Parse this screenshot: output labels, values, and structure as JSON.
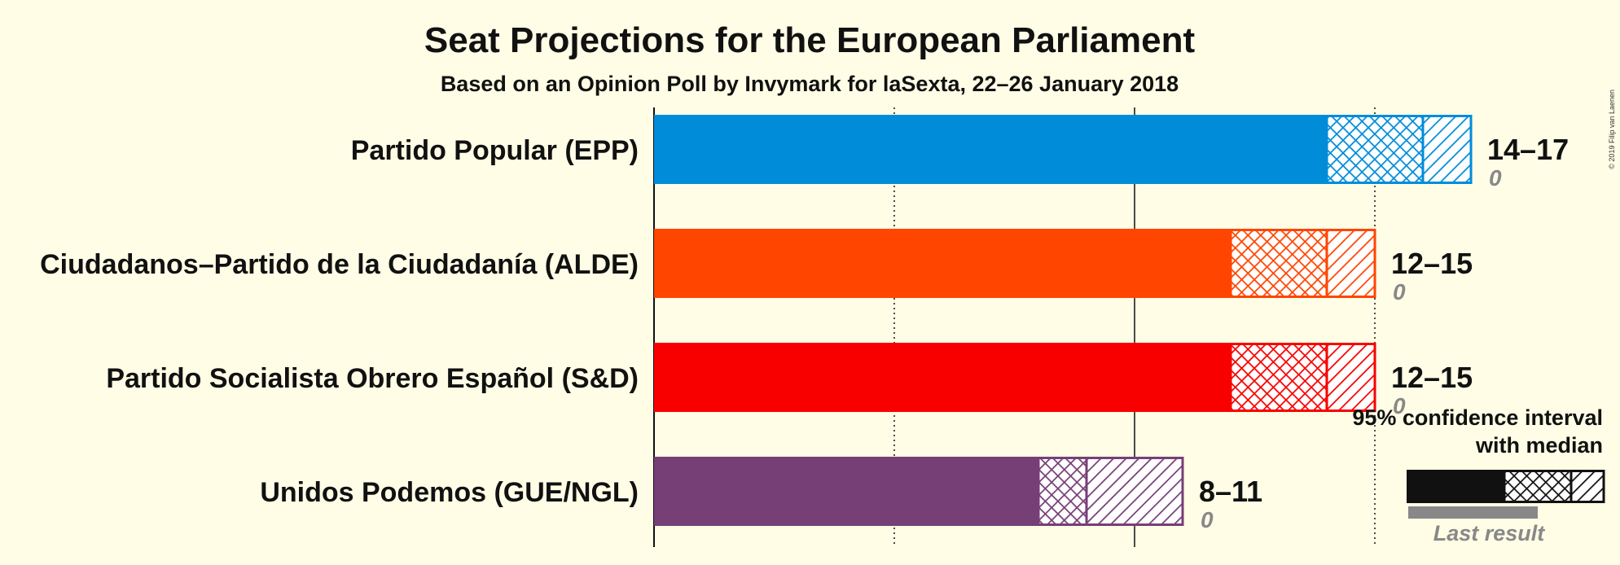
{
  "chart_data": {
    "type": "bar",
    "orientation": "horizontal",
    "title": "Seat Projections for the European Parliament",
    "subtitle": "Based on an Opinion Poll by Invymark for laSexta, 22–26 January 2018",
    "copyright": "© 2019 Filip van Laenen",
    "xlim": [
      0,
      17
    ],
    "gridlines": [
      5,
      10,
      15
    ],
    "categories": [
      "Partido Popular (EPP)",
      "Ciudadanos–Partido de la Ciudadanía (ALDE)",
      "Partido Socialista Obrero Español (S&D)",
      "Unidos Podemos (GUE/NGL)"
    ],
    "series": [
      {
        "category": "Partido Popular (EPP)",
        "low": 14,
        "median": 16,
        "high": 17,
        "range_label": "14–17",
        "last_result": 0,
        "last_label": "0",
        "color": "#008CD9"
      },
      {
        "category": "Ciudadanos–Partido de la Ciudadanía (ALDE)",
        "low": 12,
        "median": 14,
        "high": 15,
        "range_label": "12–15",
        "last_result": 0,
        "last_label": "0",
        "color": "#FF4500"
      },
      {
        "category": "Partido Socialista Obrero Español (S&D)",
        "low": 12,
        "median": 14,
        "high": 15,
        "range_label": "12–15",
        "last_result": 0,
        "last_label": "0",
        "color": "#F80000"
      },
      {
        "category": "Unidos Podemos (GUE/NGL)",
        "low": 8,
        "median": 9,
        "high": 11,
        "range_label": "8–11",
        "last_result": 0,
        "last_label": "0",
        "color": "#763F76"
      }
    ],
    "legend": {
      "line1": "95% confidence interval",
      "line2": "with median",
      "last_result": "Last result",
      "placement": "bottom-right"
    }
  }
}
